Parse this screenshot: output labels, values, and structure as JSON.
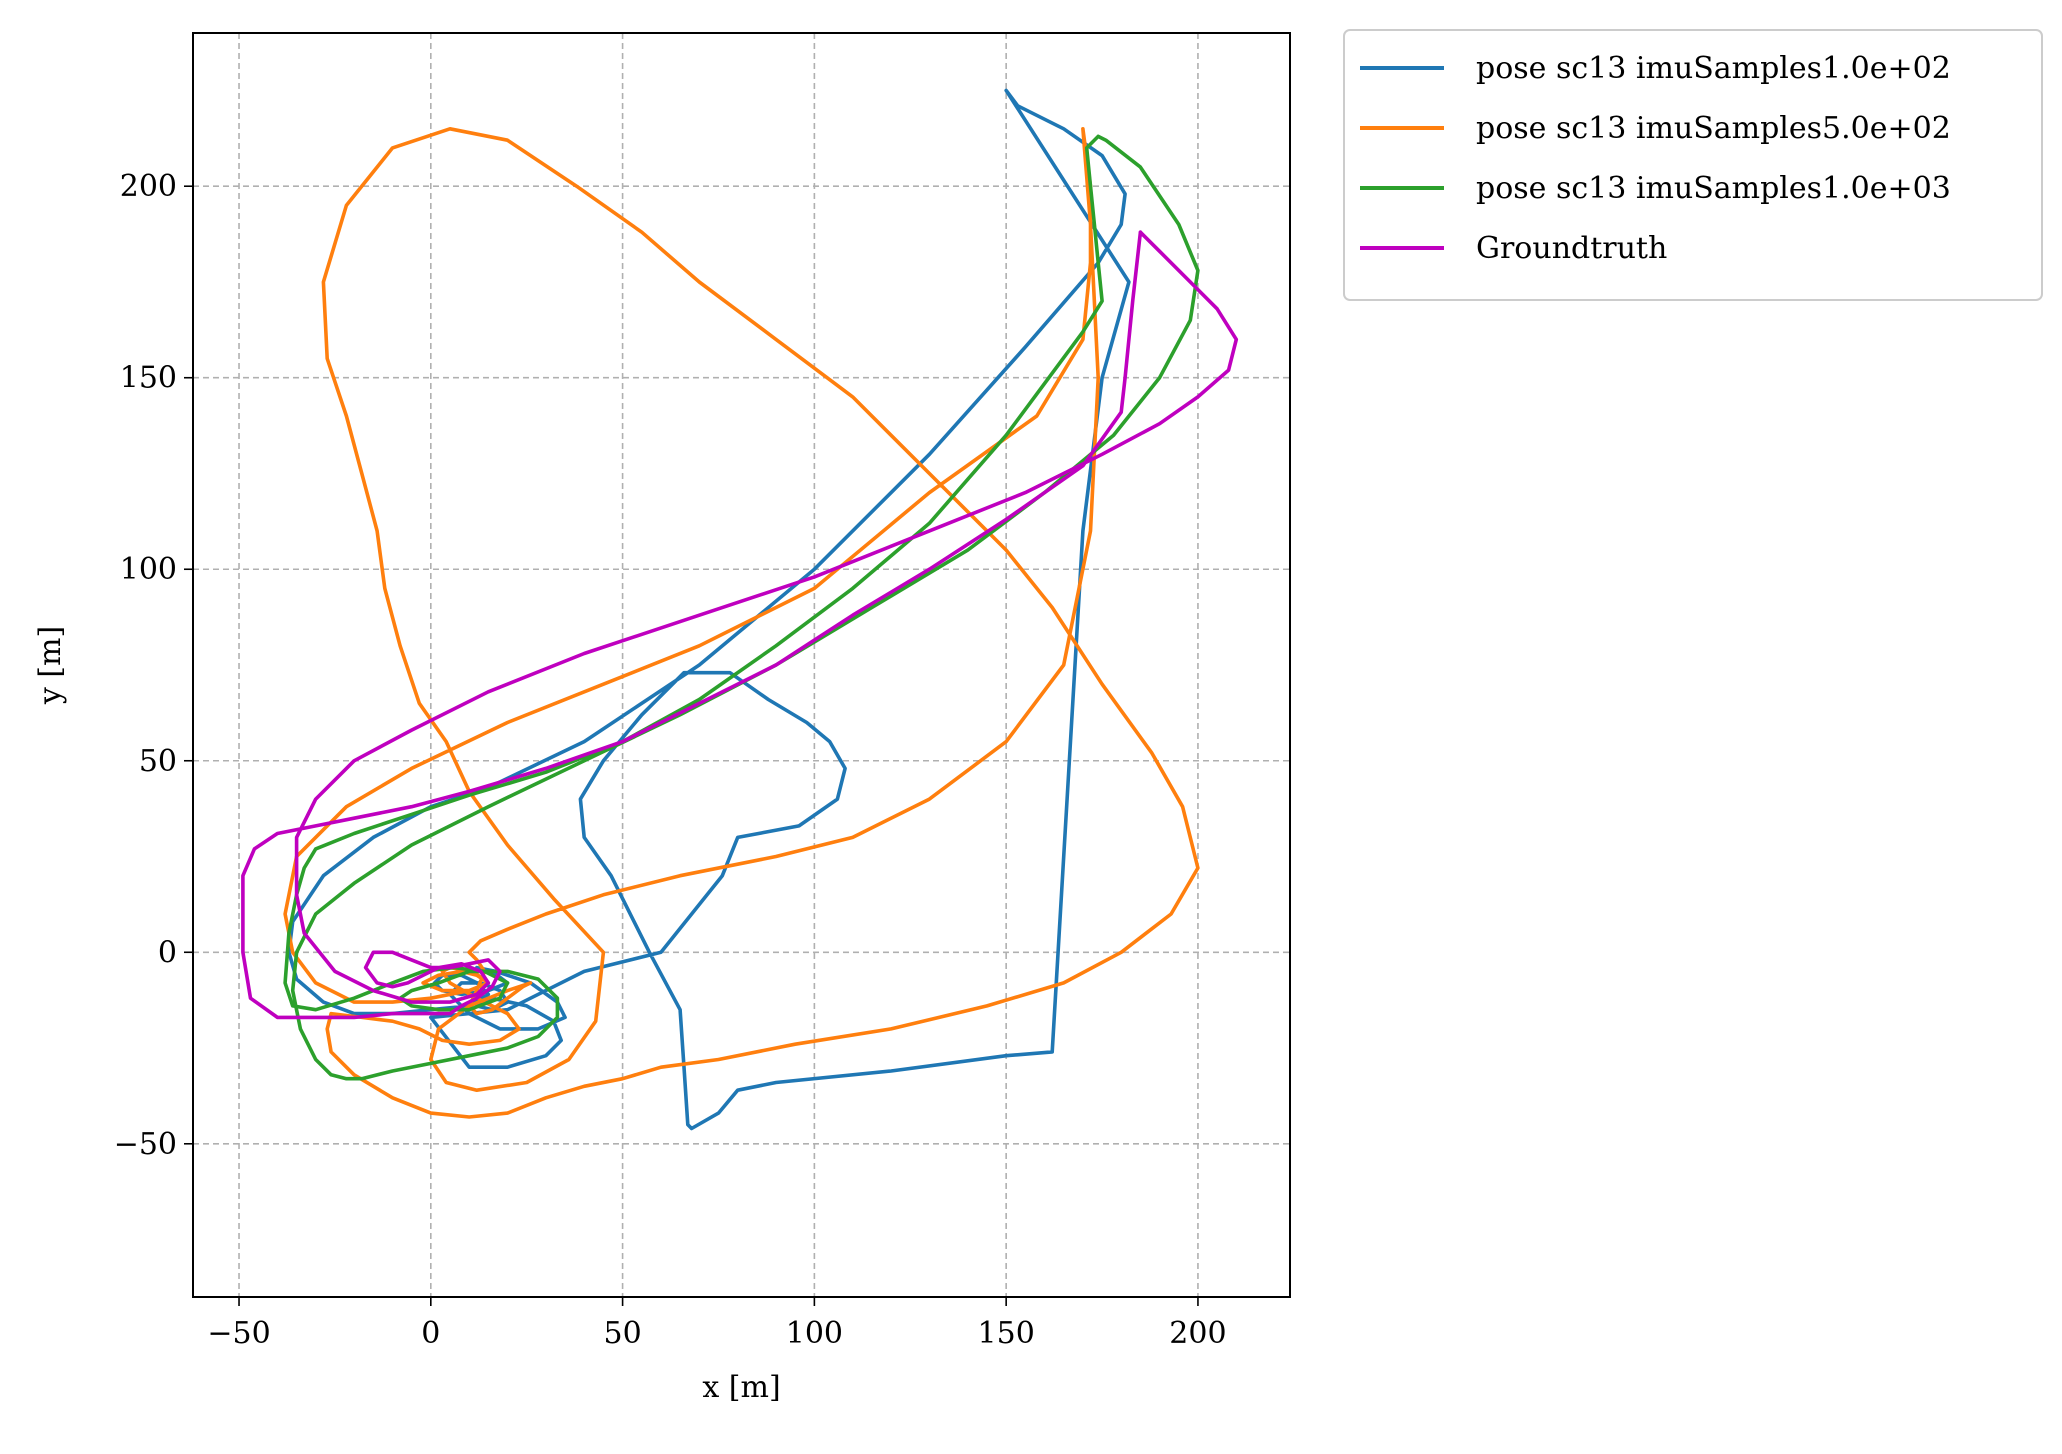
{
  "chart_data": {
    "type": "line",
    "title": "",
    "xlabel": "x [m]",
    "ylabel": "y [m]",
    "xlim": [
      -62,
      224
    ],
    "ylim": [
      -90,
      240
    ],
    "xticks": [
      -50,
      0,
      50,
      100,
      150,
      200
    ],
    "yticks": [
      -50,
      0,
      50,
      100,
      150,
      200
    ],
    "xtick_labels": [
      "−50",
      "0",
      "50",
      "100",
      "150",
      "200"
    ],
    "ytick_labels": [
      "−50",
      "0",
      "50",
      "100",
      "150",
      "200"
    ],
    "grid": true,
    "grid_style": "dashed",
    "legend_position": "outside-top-right",
    "series": [
      {
        "name": "pose sc13 imuSamples1.0e+02",
        "color": "#1f77b4",
        "x": [
          150,
          153,
          165,
          175,
          181,
          180,
          174,
          155,
          130,
          100,
          70,
          40,
          15,
          0,
          -15,
          -28,
          -36,
          -37,
          -35,
          -28,
          -20,
          -10,
          0,
          10,
          15,
          12,
          8,
          3,
          1,
          3,
          8,
          15,
          20,
          16,
          12,
          17,
          26,
          33,
          35,
          28,
          18,
          10,
          5,
          8,
          13,
          18,
          20,
          16,
          12,
          16,
          25,
          32,
          34,
          30,
          20,
          10,
          0,
          20,
          40,
          60,
          76,
          80,
          96,
          106,
          108,
          104,
          98,
          88,
          78,
          66,
          55,
          45,
          39,
          40,
          47,
          57,
          65,
          66,
          67,
          68,
          75,
          80,
          90,
          120,
          150,
          162,
          170,
          175,
          182,
          150
        ],
        "y": [
          225,
          221,
          215,
          208,
          198,
          190,
          180,
          158,
          130,
          100,
          75,
          55,
          43,
          38,
          30,
          20,
          8,
          0,
          -7,
          -13,
          -16,
          -16,
          -15,
          -14,
          -11,
          -8,
          -6,
          -6,
          -8,
          -10,
          -11,
          -10,
          -8,
          -5,
          -4,
          -5,
          -8,
          -13,
          -17,
          -20,
          -20,
          -16,
          -11,
          -8,
          -8,
          -10,
          -13,
          -15,
          -14,
          -12,
          -14,
          -18,
          -23,
          -27,
          -30,
          -30,
          -17,
          -15,
          -5,
          0,
          20,
          30,
          33,
          40,
          48,
          55,
          60,
          66,
          73,
          73,
          62,
          50,
          40,
          30,
          20,
          0,
          -15,
          -30,
          -45,
          -46,
          -42,
          -36,
          -34,
          -31,
          -27,
          -26,
          110,
          150,
          175,
          225
        ]
      },
      {
        "name": "pose sc13 imuSamples5.0e+02",
        "color": "#ff7f0e",
        "x": [
          170,
          172,
          172,
          170,
          158,
          130,
          100,
          70,
          45,
          20,
          -5,
          -22,
          -35,
          -38,
          -36,
          -30,
          -20,
          -10,
          0,
          10,
          15,
          12,
          8,
          2,
          -2,
          3,
          10,
          15,
          11,
          5,
          3,
          5,
          12,
          20,
          23,
          18,
          10,
          3,
          -3,
          -10,
          -18,
          -26,
          -27,
          -26,
          -20,
          -10,
          0,
          10,
          20,
          30,
          40,
          50,
          60,
          75,
          95,
          120,
          145,
          165,
          180,
          193,
          200,
          196,
          188,
          175,
          162,
          150,
          130,
          110,
          90,
          70,
          55,
          38,
          20,
          5,
          -10,
          -22,
          -28,
          -27,
          -22,
          -18,
          -14,
          -12,
          -8,
          -3,
          4,
          10,
          20,
          32,
          45,
          43,
          36,
          25,
          12,
          4,
          0,
          2,
          10,
          20,
          26,
          24,
          20,
          16,
          12,
          10,
          12,
          14,
          12,
          10,
          13,
          20,
          30,
          45,
          65,
          90,
          110,
          130,
          150,
          165,
          172,
          174,
          172,
          170
        ],
        "y": [
          215,
          200,
          180,
          160,
          140,
          120,
          95,
          80,
          70,
          60,
          48,
          38,
          25,
          10,
          0,
          -8,
          -13,
          -13,
          -12,
          -10,
          -8,
          -6,
          -5,
          -6,
          -8,
          -10,
          -10,
          -8,
          -5,
          -4,
          -5,
          -8,
          -12,
          -16,
          -20,
          -23,
          -24,
          -23,
          -20,
          -18,
          -17,
          -16,
          -20,
          -26,
          -32,
          -38,
          -42,
          -43,
          -42,
          -38,
          -35,
          -33,
          -30,
          -28,
          -24,
          -20,
          -14,
          -8,
          0,
          10,
          22,
          38,
          52,
          70,
          90,
          105,
          125,
          145,
          160,
          175,
          188,
          200,
          212,
          215,
          210,
          195,
          175,
          155,
          140,
          125,
          110,
          95,
          80,
          65,
          55,
          42,
          28,
          14,
          0,
          -18,
          -28,
          -34,
          -36,
          -34,
          -28,
          -20,
          -14,
          -10,
          -8,
          -9,
          -12,
          -15,
          -16,
          -14,
          -10,
          -5,
          -2,
          0,
          3,
          6,
          10,
          15,
          20,
          25,
          30,
          40,
          55,
          75,
          110,
          150,
          190,
          215
        ]
      },
      {
        "name": "pose sc13 imuSamples1.0e+03",
        "color": "#2ca02c",
        "x": [
          174,
          176,
          185,
          195,
          200,
          198,
          190,
          178,
          160,
          140,
          115,
          90,
          65,
          40,
          15,
          -5,
          -20,
          -30,
          -35,
          -36,
          -34,
          -30,
          -26,
          -22,
          -18,
          -10,
          0,
          10,
          20,
          28,
          33,
          33,
          28,
          20,
          10,
          2,
          -5,
          -8,
          -5,
          2,
          10,
          18,
          20,
          14,
          6,
          -2,
          -10,
          -20,
          -30,
          -36,
          -38,
          -37,
          -35,
          -33,
          -30,
          -20,
          -5,
          10,
          30,
          50,
          70,
          90,
          110,
          130,
          150,
          170,
          175,
          174,
          173,
          172,
          171,
          174
        ],
        "y": [
          213,
          212,
          205,
          190,
          178,
          165,
          150,
          135,
          120,
          105,
          90,
          75,
          62,
          50,
          38,
          28,
          18,
          10,
          0,
          -10,
          -20,
          -28,
          -32,
          -33,
          -33,
          -31,
          -29,
          -27,
          -25,
          -22,
          -17,
          -12,
          -7,
          -5,
          -5,
          -8,
          -10,
          -12,
          -14,
          -15,
          -15,
          -12,
          -8,
          -5,
          -4,
          -5,
          -8,
          -12,
          -15,
          -14,
          -8,
          5,
          15,
          22,
          27,
          31,
          36,
          41,
          47,
          55,
          66,
          80,
          95,
          112,
          135,
          162,
          170,
          180,
          190,
          200,
          210,
          213
        ]
      },
      {
        "name": "Groundtruth",
        "color": "#bf00bf",
        "x": [
          185,
          190,
          198,
          205,
          210,
          208,
          200,
          190,
          175,
          155,
          130,
          100,
          70,
          40,
          15,
          -5,
          -20,
          -30,
          -35,
          -35,
          -33,
          -25,
          -15,
          -5,
          5,
          12,
          15,
          13,
          8,
          2,
          -2,
          -6,
          -10,
          -14,
          -17,
          -15,
          -10,
          -5,
          0,
          5,
          10,
          15,
          18,
          16,
          12,
          8,
          5,
          0,
          -10,
          -20,
          -30,
          -40,
          -47,
          -49,
          -49,
          -46,
          -40,
          -30,
          -20,
          -5,
          10,
          30,
          50,
          70,
          90,
          110,
          130,
          150,
          170,
          180,
          181,
          183,
          185
        ],
        "y": [
          188,
          183,
          175,
          168,
          160,
          152,
          145,
          138,
          130,
          120,
          110,
          98,
          88,
          78,
          68,
          58,
          50,
          40,
          30,
          15,
          5,
          -5,
          -10,
          -13,
          -13,
          -11,
          -8,
          -5,
          -3,
          -4,
          -6,
          -8,
          -9,
          -8,
          -4,
          0,
          0,
          -2,
          -4,
          -4,
          -3,
          -2,
          -5,
          -9,
          -12,
          -14,
          -16,
          -16,
          -16,
          -17,
          -17,
          -17,
          -12,
          0,
          20,
          27,
          31,
          33,
          35,
          38,
          42,
          48,
          55,
          65,
          75,
          88,
          100,
          113,
          127,
          141,
          150,
          170,
          188
        ]
      }
    ]
  }
}
